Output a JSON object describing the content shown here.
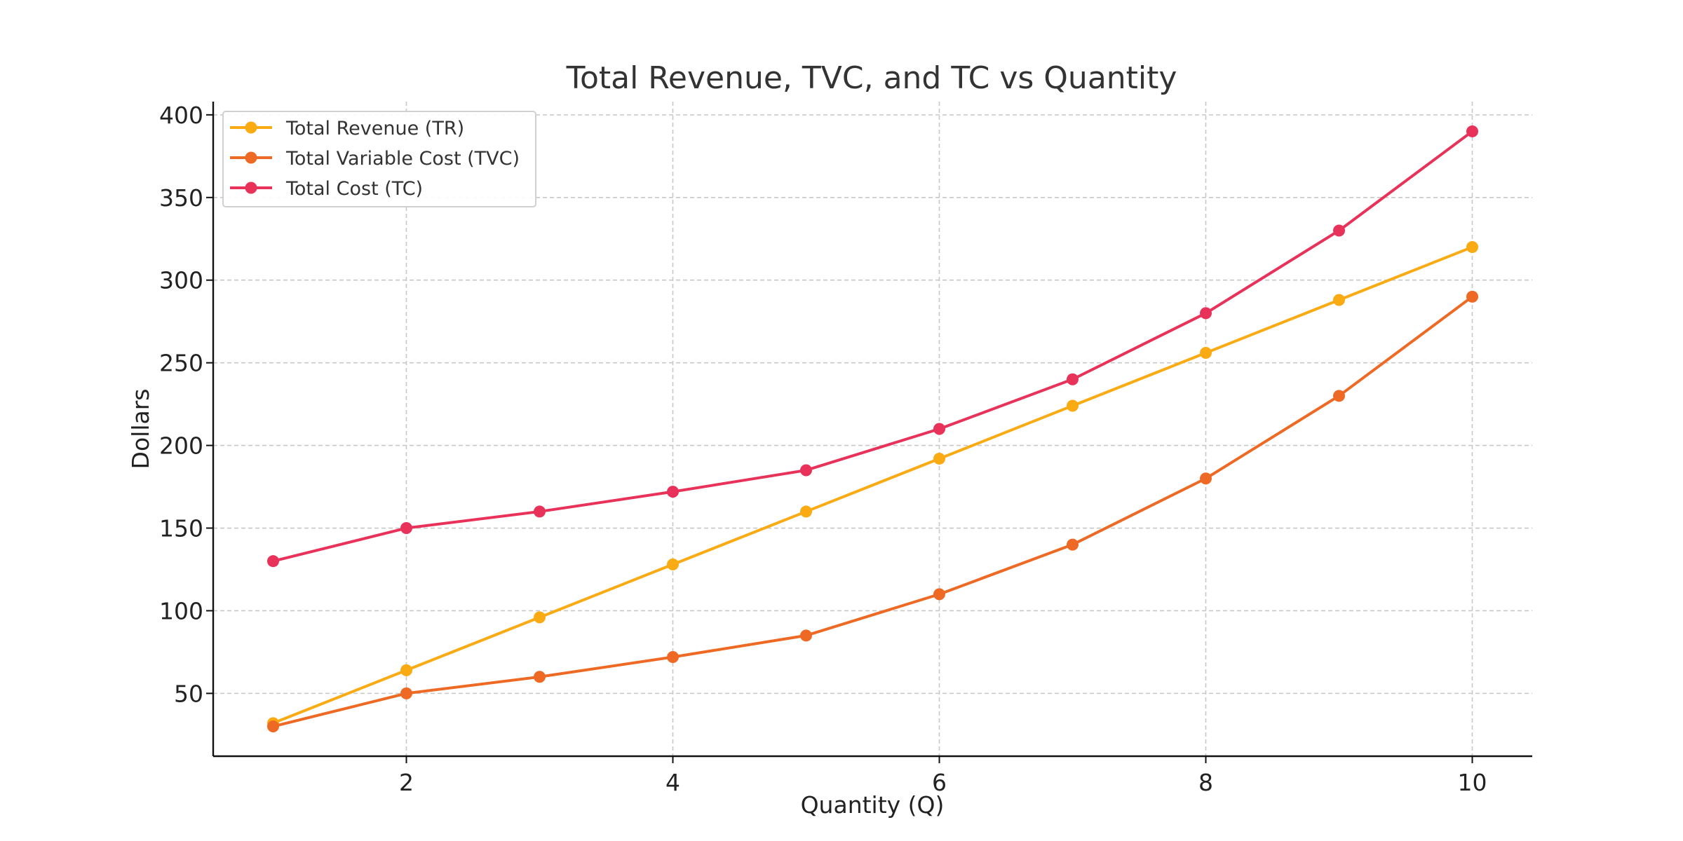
{
  "chart_data": {
    "type": "line",
    "title": "Total Revenue, TVC, and TC vs Quantity",
    "xlabel": "Quantity (Q)",
    "ylabel": "Dollars",
    "x": [
      1,
      2,
      3,
      4,
      5,
      6,
      7,
      8,
      9,
      10
    ],
    "xlim": [
      0.55,
      10.45
    ],
    "ylim": [
      12,
      408
    ],
    "xticks": [
      2,
      4,
      6,
      8,
      10
    ],
    "yticks": [
      50,
      100,
      150,
      200,
      250,
      300,
      350,
      400
    ],
    "grid": true,
    "legend_position": "top-left",
    "series": [
      {
        "name": "Total Revenue (TR)",
        "color": "#FAAB14",
        "values": [
          32,
          64,
          96,
          128,
          160,
          192,
          224,
          256,
          288,
          320
        ]
      },
      {
        "name": "Total Variable Cost (TVC)",
        "color": "#EE6A24",
        "values": [
          30,
          50,
          60,
          72,
          85,
          110,
          140,
          180,
          230,
          290
        ]
      },
      {
        "name": "Total Cost (TC)",
        "color": "#E8325A",
        "values": [
          130,
          150,
          160,
          172,
          185,
          210,
          240,
          280,
          330,
          390
        ]
      }
    ]
  }
}
